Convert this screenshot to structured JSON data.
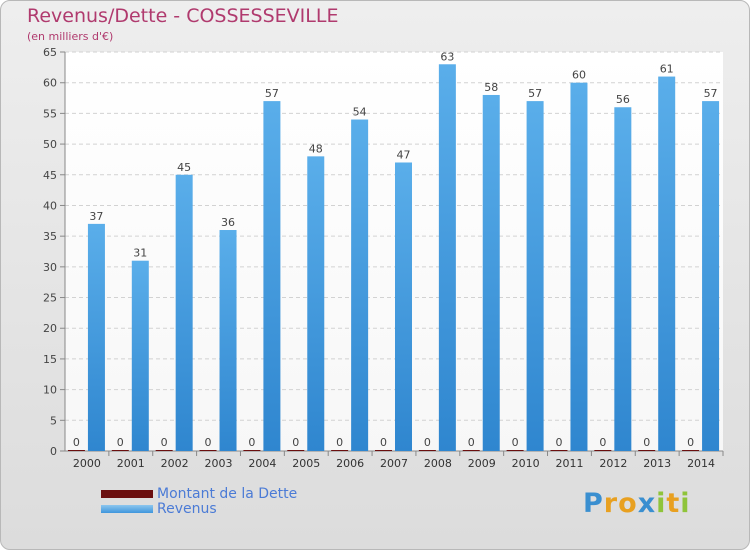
{
  "chart_data": {
    "type": "bar",
    "title": "Revenus/Dette - COSSESSEVILLE",
    "subtitle": "(en milliers d'€)",
    "categories": [
      "2000",
      "2001",
      "2002",
      "2003",
      "2004",
      "2005",
      "2006",
      "2007",
      "2008",
      "2009",
      "2010",
      "2011",
      "2012",
      "2013",
      "2014"
    ],
    "series": [
      {
        "name": "Montant de la Dette",
        "color": "#6b0f0f",
        "values": [
          0,
          0,
          0,
          0,
          0,
          0,
          0,
          0,
          0,
          0,
          0,
          0,
          0,
          0,
          0
        ]
      },
      {
        "name": "Revenus",
        "color": "#4a9fe0",
        "values": [
          37,
          31,
          45,
          36,
          57,
          48,
          54,
          47,
          63,
          58,
          57,
          60,
          56,
          61,
          57
        ]
      }
    ],
    "ylim": [
      0,
      65
    ],
    "yticks": [
      0,
      5,
      10,
      15,
      20,
      25,
      30,
      35,
      40,
      45,
      50,
      55,
      60,
      65
    ],
    "grid": true,
    "legend_position": "bottom-left"
  },
  "brand": {
    "letters": [
      {
        "ch": "P",
        "color": "#3a8fd0"
      },
      {
        "ch": "r",
        "color": "#e8a020"
      },
      {
        "ch": "o",
        "color": "#e8a020"
      },
      {
        "ch": "x",
        "color": "#3a8fd0"
      },
      {
        "ch": "i",
        "color": "#8fc43a"
      },
      {
        "ch": "t",
        "color": "#e8a020"
      },
      {
        "ch": "i",
        "color": "#8fc43a"
      }
    ]
  }
}
